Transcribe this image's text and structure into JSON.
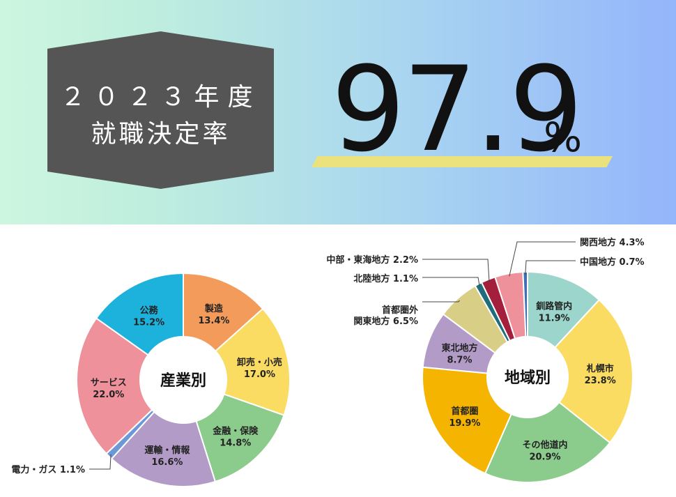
{
  "header": {
    "year_label": "２０２３年度",
    "title": "就職決定率",
    "rate_value": "97.9",
    "rate_unit": "%"
  },
  "chart_data": [
    {
      "type": "pie",
      "title": "産業別",
      "series": [
        {
          "label": "製造",
          "value": 13.4,
          "text": "13.4%",
          "color": "#f29b5a"
        },
        {
          "label": "卸売・小売",
          "value": 17.0,
          "text": "17.0%",
          "color": "#fbdc62"
        },
        {
          "label": "金融・保険",
          "value": 14.8,
          "text": "14.8%",
          "color": "#8bcb8c"
        },
        {
          "label": "運輸・情報",
          "value": 16.6,
          "text": "16.6%",
          "color": "#b39bc8"
        },
        {
          "label": "電力・ガス",
          "value": 1.1,
          "text": "1.1%",
          "color": "#6d98d6"
        },
        {
          "label": "サービス",
          "value": 22.0,
          "text": "22.0%",
          "color": "#ee919b"
        },
        {
          "label": "公務",
          "value": 15.2,
          "text": "15.2%",
          "color": "#1cb2dc"
        }
      ]
    },
    {
      "type": "pie",
      "title": "地域別",
      "series": [
        {
          "label": "釧路管内",
          "value": 11.9,
          "text": "11.9%",
          "color": "#9bd5cb"
        },
        {
          "label": "札幌市",
          "value": 23.8,
          "text": "23.8%",
          "color": "#fbdc62"
        },
        {
          "label": "その他道内",
          "value": 20.9,
          "text": "20.9%",
          "color": "#8bcb8c"
        },
        {
          "label": "首都圏",
          "value": 19.9,
          "text": "19.9%",
          "color": "#f4b400"
        },
        {
          "label": "東北地方",
          "value": 8.7,
          "text": "8.7%",
          "color": "#b39bc8"
        },
        {
          "label": "首都圏外関東地方",
          "value": 6.5,
          "text": "6.5%",
          "color": "#d9ce85"
        },
        {
          "label": "北陸地方",
          "value": 1.1,
          "text": "1.1%",
          "color": "#1f6d7a"
        },
        {
          "label": "中部・東海地方",
          "value": 2.2,
          "text": "2.2%",
          "color": "#a41f3c"
        },
        {
          "label": "関西地方",
          "value": 4.3,
          "text": "4.3%",
          "color": "#ee919b"
        },
        {
          "label": "中国地方",
          "value": 0.7,
          "text": "0.7%",
          "color": "#3f6fb5"
        }
      ]
    }
  ]
}
